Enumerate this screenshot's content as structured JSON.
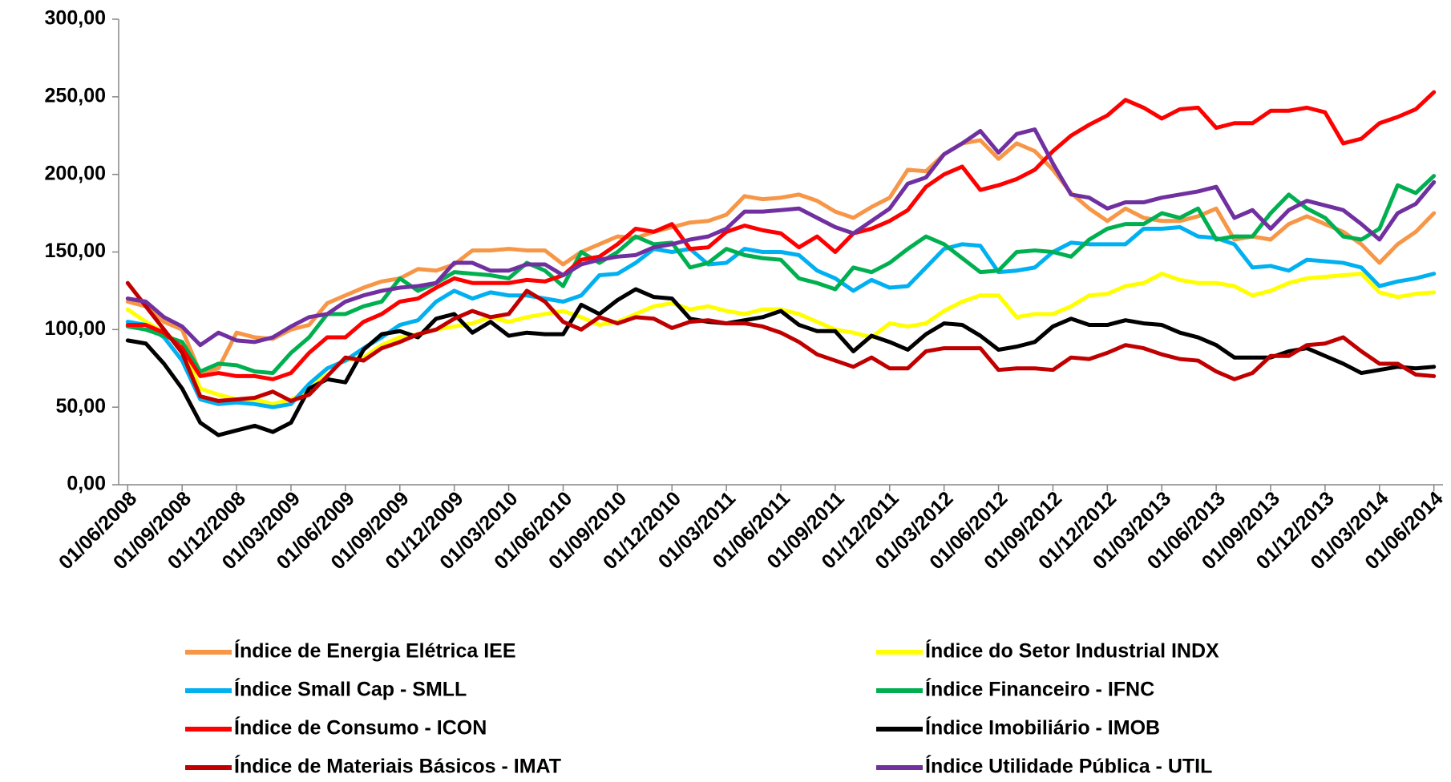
{
  "chart_data": {
    "type": "line",
    "categories": [
      "01/06/2008",
      null,
      null,
      "01/09/2008",
      null,
      null,
      "01/12/2008",
      null,
      null,
      "01/03/2009",
      null,
      null,
      "01/06/2009",
      null,
      null,
      "01/09/2009",
      null,
      null,
      "01/12/2009",
      null,
      null,
      "01/03/2010",
      null,
      null,
      "01/06/2010",
      null,
      null,
      "01/09/2010",
      null,
      null,
      "01/12/2010",
      null,
      null,
      "01/03/2011",
      null,
      null,
      "01/06/2011",
      null,
      null,
      "01/09/2011",
      null,
      null,
      "01/12/2011",
      null,
      null,
      "01/03/2012",
      null,
      null,
      "01/06/2012",
      null,
      null,
      "01/09/2012",
      null,
      null,
      "01/12/2012",
      null,
      null,
      "01/03/2013",
      null,
      null,
      "01/06/2013",
      null,
      null,
      "01/09/2013",
      null,
      null,
      "01/12/2013",
      null,
      null,
      "01/03/2014",
      null,
      null,
      "01/06/2014"
    ],
    "series": [
      {
        "name": "Índice de Energia Elétrica IEE",
        "color": "#F79646",
        "values": [
          118,
          115,
          105,
          100,
          72,
          75,
          98,
          95,
          94,
          100,
          103,
          117,
          122,
          127,
          131,
          133,
          139,
          138,
          142,
          151,
          151,
          152,
          151,
          151,
          142,
          150,
          155,
          160,
          159,
          163,
          166,
          169,
          170,
          174,
          186,
          184,
          185,
          187,
          183,
          176,
          172,
          179,
          185,
          203,
          202,
          213,
          220,
          222,
          210,
          220,
          215,
          203,
          188,
          178,
          170,
          178,
          172,
          170,
          170,
          173,
          178,
          158,
          160,
          158,
          168,
          173,
          168,
          163,
          155,
          143,
          155,
          163,
          175
        ]
      },
      {
        "name": "Índice do Setor Industrial INDX",
        "color": "#FFFF00",
        "values": [
          113,
          105,
          98,
          90,
          62,
          58,
          55,
          55,
          52,
          55,
          60,
          75,
          80,
          82,
          90,
          95,
          97,
          100,
          102,
          104,
          108,
          105,
          108,
          110,
          112,
          108,
          103,
          105,
          110,
          115,
          117,
          113,
          115,
          112,
          110,
          113,
          113,
          110,
          105,
          100,
          98,
          95,
          104,
          102,
          104,
          112,
          118,
          122,
          122,
          108,
          110,
          110,
          115,
          122,
          123,
          128,
          130,
          136,
          132,
          130,
          130,
          128,
          122,
          125,
          130,
          133,
          134,
          135,
          136,
          124,
          121,
          123,
          124
        ]
      },
      {
        "name": "Índice Small Cap - SMLL",
        "color": "#00B0F0",
        "values": [
          105,
          103,
          95,
          80,
          55,
          52,
          53,
          52,
          50,
          52,
          65,
          75,
          80,
          88,
          95,
          103,
          106,
          118,
          125,
          120,
          124,
          122,
          122,
          120,
          118,
          122,
          135,
          136,
          143,
          152,
          150,
          152,
          142,
          143,
          152,
          150,
          150,
          148,
          138,
          133,
          125,
          132,
          127,
          128,
          140,
          152,
          155,
          154,
          137,
          138,
          140,
          150,
          156,
          155,
          155,
          155,
          165,
          165,
          166,
          160,
          159,
          155,
          140,
          141,
          138,
          145,
          144,
          143,
          140,
          128,
          131,
          133,
          136
        ]
      },
      {
        "name": "Índice Financeiro - IFNC",
        "color": "#00B050",
        "values": [
          102,
          100,
          96,
          92,
          73,
          78,
          77,
          73,
          72,
          85,
          95,
          110,
          110,
          115,
          118,
          133,
          125,
          130,
          137,
          136,
          135,
          133,
          143,
          138,
          128,
          150,
          143,
          150,
          160,
          155,
          156,
          140,
          143,
          152,
          148,
          146,
          145,
          133,
          130,
          126,
          140,
          137,
          143,
          152,
          160,
          155,
          146,
          137,
          138,
          150,
          151,
          150,
          147,
          158,
          165,
          168,
          168,
          175,
          172,
          178,
          158,
          160,
          160,
          175,
          187,
          178,
          172,
          160,
          158,
          165,
          193,
          188,
          199
        ]
      },
      {
        "name": "Índice de Consumo - ICON",
        "color": "#FF0000",
        "values": [
          103,
          103,
          98,
          88,
          70,
          72,
          70,
          70,
          68,
          72,
          85,
          95,
          95,
          105,
          110,
          118,
          120,
          127,
          133,
          130,
          130,
          130,
          132,
          131,
          135,
          145,
          147,
          155,
          165,
          163,
          168,
          152,
          153,
          163,
          167,
          164,
          162,
          153,
          160,
          150,
          162,
          165,
          170,
          177,
          192,
          200,
          205,
          190,
          193,
          197,
          203,
          215,
          225,
          232,
          238,
          248,
          243,
          236,
          242,
          243,
          230,
          233,
          233,
          241,
          241,
          243,
          240,
          220,
          223,
          233,
          237,
          242,
          253
        ]
      },
      {
        "name": "Índice Imobiliário - IMOB",
        "color": "#000000",
        "values": [
          93,
          91,
          78,
          62,
          40,
          32,
          35,
          38,
          34,
          40,
          62,
          68,
          66,
          87,
          97,
          99,
          95,
          107,
          110,
          98,
          105,
          96,
          98,
          97,
          97,
          116,
          110,
          119,
          126,
          121,
          120,
          107,
          105,
          104,
          106,
          108,
          112,
          103,
          99,
          99,
          86,
          96,
          92,
          87,
          97,
          104,
          103,
          96,
          87,
          89,
          92,
          102,
          107,
          103,
          103,
          106,
          104,
          103,
          98,
          95,
          90,
          82,
          82,
          82,
          86,
          88,
          83,
          78,
          72,
          74,
          76,
          75,
          76
        ]
      },
      {
        "name": "Índice de Materiais Básicos - IMAT",
        "color": "#C00000",
        "values": [
          130,
          115,
          100,
          85,
          57,
          54,
          55,
          56,
          60,
          54,
          58,
          70,
          82,
          80,
          88,
          92,
          97,
          100,
          107,
          112,
          108,
          110,
          125,
          118,
          105,
          100,
          108,
          104,
          108,
          107,
          101,
          105,
          106,
          104,
          104,
          102,
          98,
          92,
          84,
          80,
          76,
          82,
          75,
          75,
          86,
          88,
          88,
          88,
          74,
          75,
          75,
          74,
          82,
          81,
          85,
          90,
          88,
          84,
          81,
          80,
          73,
          68,
          72,
          83,
          83,
          90,
          91,
          95,
          86,
          78,
          78,
          71,
          70
        ]
      },
      {
        "name": "Índice Utilidade Pública - UTIL",
        "color": "#7030A0",
        "values": [
          120,
          118,
          108,
          102,
          90,
          98,
          93,
          92,
          95,
          102,
          108,
          110,
          118,
          122,
          125,
          127,
          128,
          130,
          143,
          143,
          138,
          138,
          142,
          142,
          135,
          142,
          145,
          147,
          148,
          153,
          155,
          158,
          160,
          165,
          176,
          176,
          177,
          178,
          172,
          166,
          162,
          170,
          178,
          194,
          198,
          213,
          220,
          228,
          214,
          226,
          229,
          207,
          187,
          185,
          178,
          182,
          182,
          185,
          187,
          189,
          192,
          172,
          177,
          165,
          177,
          183,
          180,
          177,
          168,
          158,
          175,
          181,
          195
        ]
      }
    ],
    "ylim": [
      0,
      300
    ],
    "yticks": [
      {
        "value": 0,
        "label": "0,00"
      },
      {
        "value": 50,
        "label": "50,00"
      },
      {
        "value": 100,
        "label": "100,00"
      },
      {
        "value": 150,
        "label": "150,00"
      },
      {
        "value": 200,
        "label": "200,00"
      },
      {
        "value": 250,
        "label": "250,00"
      },
      {
        "value": 300,
        "label": "300,00"
      }
    ],
    "grid": false
  }
}
